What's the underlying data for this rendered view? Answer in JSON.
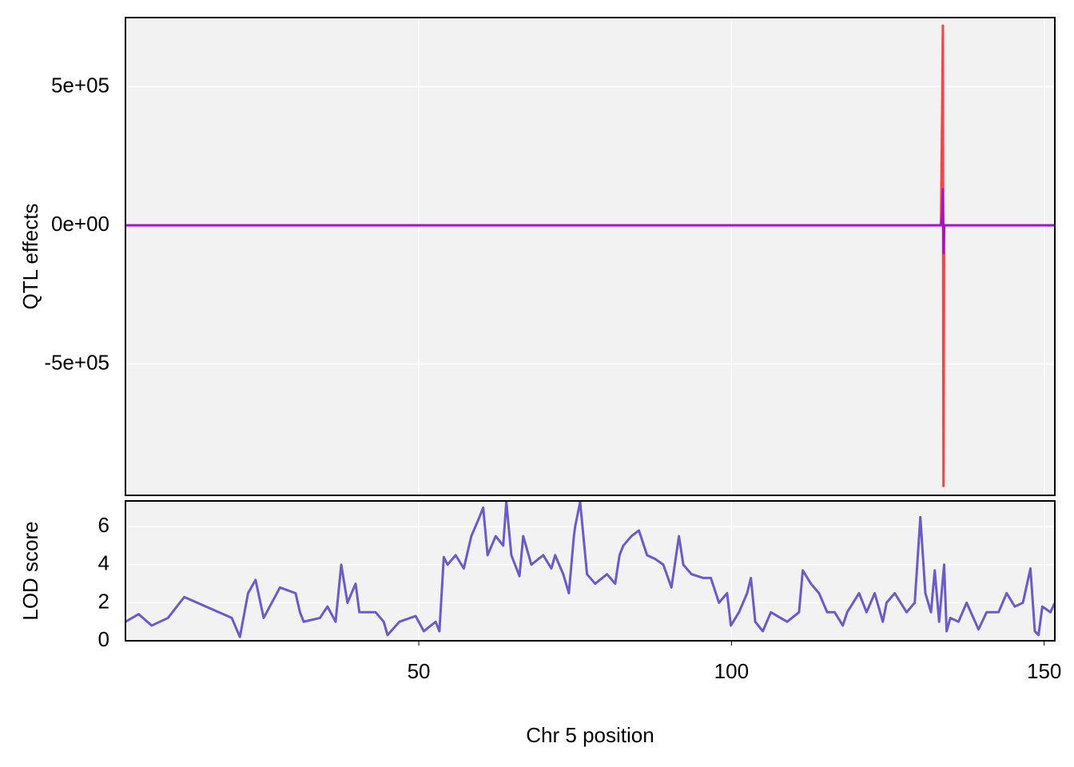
{
  "chart_data": [
    {
      "type": "line",
      "y_label": "QTL effects",
      "x": [
        3.1,
        133.5,
        133.7,
        133.8,
        133.9,
        134.0,
        151.7
      ],
      "series": [
        {
          "color": "#ff4040",
          "values": [
            0,
            0,
            450000,
            720000,
            -940000,
            0,
            0
          ]
        },
        {
          "color": "#a513c6",
          "values": [
            0,
            0,
            40000,
            130000,
            -100000,
            0,
            0
          ]
        }
      ],
      "xlim": [
        3.1,
        151.7
      ],
      "xticks": [
        50,
        100,
        150
      ],
      "ylim": [
        -974000,
        749000
      ],
      "yticks": [
        {
          "value": 500000,
          "label": "5e+05"
        },
        {
          "value": 0,
          "label": "0e+00"
        },
        {
          "value": -500000,
          "label": "-5e+05"
        }
      ],
      "grid": true
    },
    {
      "type": "line",
      "y_label": "LOD score",
      "x_label": "Chr 5 position",
      "x": [
        3.1,
        5.2,
        7.3,
        9.9,
        12.5,
        20.1,
        21.4,
        22.7,
        23.9,
        25.2,
        27.8,
        30.3,
        31.0,
        31.6,
        34.2,
        35.4,
        36.7,
        37.6,
        38.6,
        39.9,
        40.5,
        43.1,
        44.4,
        45.0,
        46.9,
        49.5,
        50.8,
        52.7,
        53.3,
        54.0,
        54.6,
        55.9,
        57.2,
        58.4,
        59.7,
        60.3,
        61.0,
        62.3,
        63.5,
        64.0,
        64.8,
        66.1,
        66.7,
        68.0,
        69.9,
        71.2,
        71.8,
        73.1,
        74.0,
        74.8,
        75.0,
        75.8,
        76.9,
        78.2,
        80.1,
        81.4,
        82.1,
        82.7,
        84.0,
        85.2,
        86.5,
        87.8,
        89.1,
        90.4,
        91.6,
        92.3,
        93.6,
        95.5,
        96.7,
        98.0,
        99.3,
        99.9,
        101.2,
        102.5,
        103.1,
        103.8,
        105.0,
        106.3,
        108.9,
        110.8,
        111.4,
        112.7,
        114.0,
        115.3,
        116.5,
        117.8,
        118.5,
        120.4,
        121.6,
        122.9,
        124.2,
        124.8,
        126.1,
        128.0,
        129.3,
        130.2,
        131.0,
        131.9,
        132.5,
        133.2,
        134.0,
        134.4,
        135.0,
        136.3,
        137.6,
        139.5,
        140.8,
        142.7,
        144.0,
        145.3,
        146.6,
        147.8,
        148.5,
        149.1,
        149.7,
        151.0,
        151.7
      ],
      "series": [
        {
          "color": "#6a5acd",
          "values": [
            1.0,
            1.4,
            0.8,
            1.2,
            2.3,
            1.2,
            0.2,
            2.5,
            3.2,
            1.2,
            2.8,
            2.5,
            1.5,
            1.0,
            1.2,
            1.8,
            1.0,
            4.0,
            2.0,
            3.0,
            1.5,
            1.5,
            1.0,
            0.3,
            1.0,
            1.3,
            0.5,
            1.0,
            0.5,
            4.4,
            4.0,
            4.5,
            3.8,
            5.5,
            6.5,
            7.0,
            4.5,
            5.5,
            5.0,
            7.3,
            4.5,
            3.4,
            5.5,
            4.0,
            4.5,
            3.8,
            4.5,
            3.5,
            2.5,
            5.5,
            6.0,
            7.3,
            3.5,
            3.0,
            3.5,
            3.0,
            4.5,
            5.0,
            5.5,
            5.8,
            4.5,
            4.3,
            4.0,
            2.8,
            5.5,
            4.0,
            3.5,
            3.3,
            3.3,
            2.0,
            2.5,
            0.8,
            1.5,
            2.5,
            3.3,
            1.0,
            0.5,
            1.5,
            1.0,
            1.5,
            3.7,
            3.0,
            2.5,
            1.5,
            1.5,
            0.8,
            1.5,
            2.5,
            1.5,
            2.5,
            1.0,
            2.0,
            2.5,
            1.5,
            2.0,
            6.5,
            2.5,
            1.5,
            3.7,
            1.0,
            4.0,
            0.5,
            1.2,
            1.0,
            2.0,
            0.6,
            1.5,
            1.5,
            2.5,
            1.8,
            2.0,
            3.8,
            0.5,
            0.3,
            1.8,
            1.5,
            2.0
          ]
        }
      ],
      "xlim": [
        3.1,
        151.7
      ],
      "xticks": [
        50,
        100,
        150
      ],
      "ylim": [
        0,
        7.35
      ],
      "yticks": [
        0,
        2,
        4,
        6
      ],
      "grid": true
    }
  ]
}
